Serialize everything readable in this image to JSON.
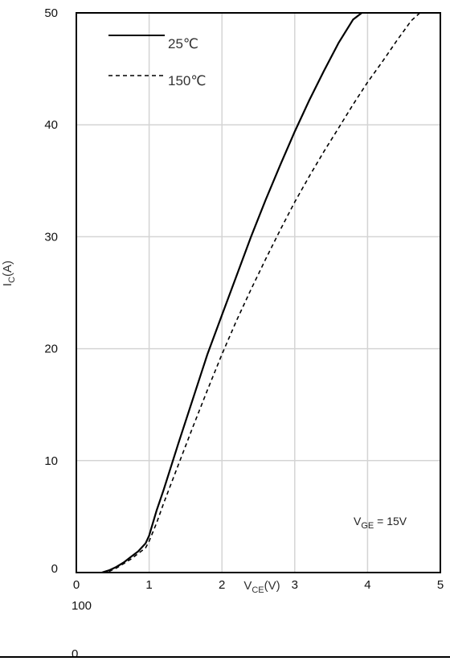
{
  "chart_data": {
    "type": "line",
    "title": "",
    "xlabel": {
      "main": "V",
      "sub": "CE",
      "suffix": "(V)"
    },
    "ylabel": {
      "main": "I",
      "sub": "C",
      "suffix": "(A)"
    },
    "xlim": [
      0,
      5
    ],
    "ylim": [
      0,
      50
    ],
    "x_ticks": [
      "0",
      "1",
      "2",
      "3",
      "4",
      "5"
    ],
    "y_ticks": [
      "0",
      "10",
      "20",
      "30",
      "40",
      "50"
    ],
    "grid": true,
    "legend": "top-left",
    "annotation": {
      "main": "V",
      "sub": "GE",
      "suffix": " = 15V"
    },
    "series": [
      {
        "name": "25℃",
        "style": "solid",
        "color": "#000000",
        "x": [
          0.35,
          0.45,
          0.55,
          0.65,
          0.75,
          0.85,
          0.95,
          1.0,
          1.1,
          1.2,
          1.4,
          1.6,
          1.8,
          2.0,
          2.2,
          2.4,
          2.6,
          2.8,
          3.0,
          3.2,
          3.4,
          3.6,
          3.8,
          3.92
        ],
        "y": [
          0,
          0.2,
          0.5,
          0.9,
          1.4,
          1.9,
          2.6,
          3.3,
          5.5,
          7.4,
          11.5,
          15.5,
          19.5,
          23.0,
          26.5,
          30.0,
          33.3,
          36.4,
          39.4,
          42.2,
          44.8,
          47.3,
          49.4,
          50.0
        ]
      },
      {
        "name": "150℃",
        "style": "dashed",
        "color": "#000000",
        "x": [
          0.35,
          0.45,
          0.55,
          0.65,
          0.75,
          0.85,
          0.95,
          1.0,
          1.1,
          1.2,
          1.4,
          1.6,
          1.8,
          2.0,
          2.2,
          2.4,
          2.6,
          2.8,
          3.0,
          3.2,
          3.4,
          3.6,
          3.8,
          4.0,
          4.2,
          4.4,
          4.6,
          4.72
        ],
        "y": [
          0,
          0.1,
          0.4,
          0.8,
          1.2,
          1.7,
          2.2,
          2.8,
          4.4,
          6.2,
          9.6,
          13.0,
          16.3,
          19.5,
          22.5,
          25.3,
          28.0,
          30.6,
          33.1,
          35.4,
          37.6,
          39.7,
          41.8,
          43.8,
          45.6,
          47.5,
          49.3,
          50.0
        ]
      }
    ]
  },
  "stray_text": [
    "100",
    "0"
  ]
}
